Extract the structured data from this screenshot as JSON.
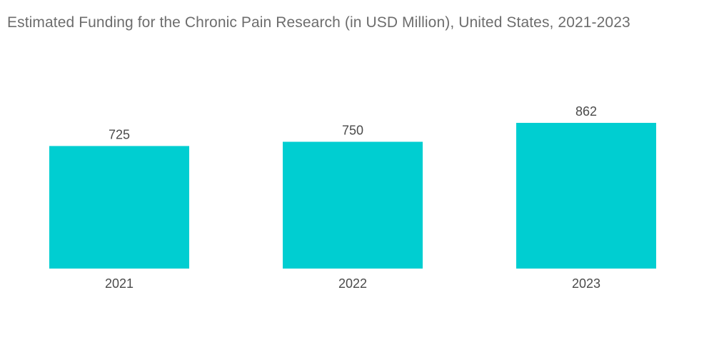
{
  "chart_data": {
    "type": "bar",
    "title": "Estimated Funding for the Chronic Pain Research (in USD Million), United States, 2021-2023",
    "categories": [
      "2021",
      "2022",
      "2023"
    ],
    "values": [
      725,
      750,
      862
    ],
    "xlabel": "",
    "ylabel": "",
    "ylim": [
      0,
      862
    ],
    "grid": false,
    "legend": "none",
    "colors": {
      "bar": "#00CED1",
      "label_text": "#4a4a4a",
      "title_text": "#6d6d6d"
    }
  }
}
